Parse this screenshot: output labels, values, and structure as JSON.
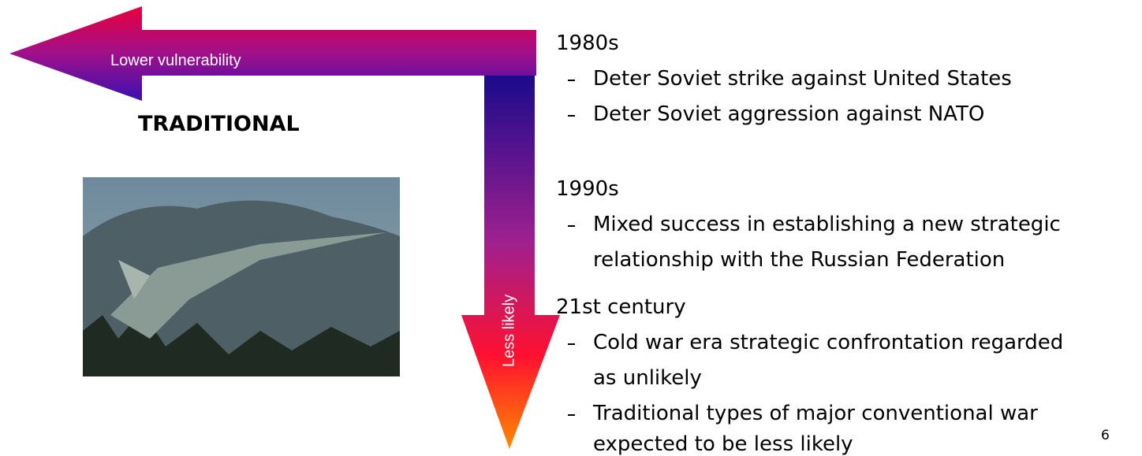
{
  "arrows": {
    "horizontal_label": "Lower vulnerability",
    "vertical_label": "Less likely"
  },
  "heading": "TRADITIONAL",
  "sections": [
    {
      "title": "1980s",
      "items": [
        {
          "lines": [
            "Deter Soviet strike against United States"
          ]
        },
        {
          "lines": [
            "Deter Soviet aggression against NATO"
          ]
        }
      ]
    },
    {
      "title": "1990s",
      "items": [
        {
          "lines": [
            "Mixed success in establishing a new strategic",
            "relationship with the Russian Federation"
          ]
        }
      ]
    },
    {
      "title": "21st century",
      "items": [
        {
          "lines": [
            "Cold war era strategic confrontation regarded",
            "as unlikely"
          ]
        },
        {
          "lines": [
            "Traditional types of major conventional war",
            "expected to be less likely"
          ]
        }
      ]
    }
  ],
  "page_number": "6"
}
